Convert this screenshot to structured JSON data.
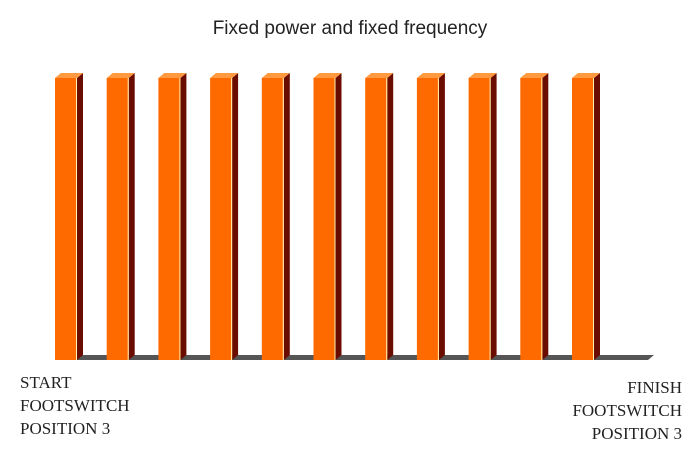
{
  "chart_data": {
    "type": "bar",
    "title": "Fixed power and fixed frequency",
    "values": [
      1,
      1,
      1,
      1,
      1,
      1,
      1,
      1,
      1,
      1,
      1
    ],
    "ylim": [
      0,
      1
    ],
    "grid": false,
    "legend": "none",
    "start_label": [
      "START",
      "FOOTSWITCH",
      "POSITION 3"
    ],
    "finish_label": [
      "FINISH",
      "FOOTSWITCH",
      "POSITION 3"
    ],
    "colors": {
      "bar_front": "#ff6a00",
      "bar_top": "#ff9a40",
      "bar_side": "#6b0c00",
      "bar_highlight": "#fff3b0",
      "floor": "#555555"
    }
  }
}
